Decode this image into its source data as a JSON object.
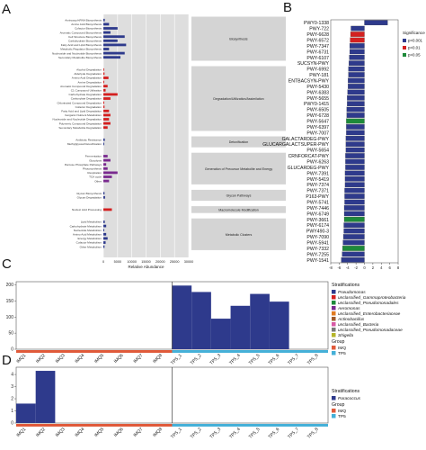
{
  "panel_labels": {
    "a": "A",
    "b": "B",
    "c": "C",
    "d": "D"
  },
  "chart_data": [
    {
      "id": "A",
      "type": "bar",
      "xlabel": "Relative Abundance",
      "xticks": [
        "0",
        "5000",
        "10000",
        "15000",
        "20000",
        "25000",
        "30000"
      ],
      "xlim": [
        0,
        30000
      ],
      "categories": [
        "Aminoacyl-tRNA Biosynthesis",
        "Amino Acid Biosynthesis",
        "Cofactor Biosynthesis",
        "Aromatic Compound Biosynthesis",
        "Cell Structure Biosynthesis",
        "Carbohydrate Biosynthesis",
        "Fatty Acid and Lipid Biosynthesis",
        "Metabolic Regulator Biosynthesis",
        "Nucleoside and Nucleotide Biosynthesis",
        "Secondary Metabolite Biosynthesis",
        "Alcohol Degradation",
        "Aldehyde Degradation",
        "Amino Acid Degradation",
        "Amine Degradation",
        "Aromatic Compound Degradation",
        "C1 Compound Utilization",
        "Carbohydrate Degradation",
        "Carboxylate Degradation",
        "Chlorinated Compound Degradation",
        "Cofactor Degradation",
        "Fatty Acid and Lipid Degradation",
        "Inorganic Nutrient Metabolism",
        "Nucleoside and Nucleotide Degradation",
        "Polymeric Compound Degradation",
        "Secondary Metabolite Degradation",
        "Antibiotic Resistance",
        "Methylglyoxal Detoxification",
        "Fermentation",
        "Glycolysis",
        "Pentose Phosphate Pathways",
        "Photosynthesis",
        "Respiration",
        "TCA cycle",
        "Other",
        "Glycan Biosynthesis",
        "Glycan Degradation",
        "Nucleic Acid Processing",
        "Lipid Metabolism",
        "Carbohydrate Metabolism",
        "Nucleotide Metabolism",
        "Amino Acid Metabolism",
        "Energy Metabolism",
        "Cofactor Metabolism",
        "Other Metabolism"
      ],
      "values": [
        500,
        2000,
        5000,
        2500,
        7500,
        5000,
        8000,
        2000,
        7500,
        6000,
        200,
        400,
        1800,
        300,
        1500,
        800,
        5000,
        2500,
        300,
        400,
        2000,
        2500,
        2000,
        2500,
        1500,
        500,
        300,
        1500,
        2500,
        1000,
        1500,
        5000,
        3000,
        2000,
        400,
        600,
        3000,
        500,
        1000,
        300,
        1000,
        1500,
        800,
        400
      ],
      "groups": [
        {
          "name": "Biosynthesis",
          "count": 10,
          "color": "#2e3a8c"
        },
        {
          "name": "Degradation/Utilization/Assimilation",
          "count": 15,
          "color": "#d42020"
        },
        {
          "name": "Detoxification",
          "count": 2,
          "color": "#2e3a8c"
        },
        {
          "name": "Generation of Precursor Metabolite and Energy",
          "count": 7,
          "color": "#7a2a8f"
        },
        {
          "name": "Glycan Pathways",
          "count": 2,
          "color": "#2e3a8c"
        },
        {
          "name": "Macromolecule Modification",
          "count": 1,
          "color": "#d42020"
        },
        {
          "name": "Metabolic Clusters",
          "count": 7,
          "color": "#2e3a8c"
        }
      ]
    },
    {
      "id": "B",
      "type": "bar",
      "orientation": "horizontal",
      "categories": [
        "PWY0-1338",
        "PWY-722",
        "PWY-6628",
        "PWY-6572",
        "PWY-7347",
        "PWY-6731",
        "PWY-6107",
        "SUCSYN-PWY",
        "PWY-6992",
        "PWY-181",
        "ENTBACSYN-PWY",
        "PWY-5430",
        "PWY-6383",
        "PWY-5655",
        "PWY0-1415",
        "PWY-6505",
        "PWY-6728",
        "PWY-5647",
        "PWY-6397",
        "PWY-7007",
        "GALACTARDEG-PWY",
        "GLUCARGALACTSUPER-PWY",
        "PWY-5654",
        "CRNFORCAT-PWY",
        "PWY-6263",
        "GLUCARDEG-PWY",
        "PWY-7391",
        "PWY-5419",
        "PWY-7374",
        "PWY-7371",
        "P163-PWY",
        "PWY-5741",
        "PWY-7446",
        "PWY-6749",
        "PWY-3661",
        "PWY-6174",
        "PWY490-3",
        "PWY-7090",
        "PWY-5941",
        "PWY-7332",
        "PWY-7255",
        "PWY-1541"
      ],
      "values": [
        5.5,
        -3.2,
        -3.3,
        -3.4,
        -3.5,
        -3.5,
        -3.6,
        -3.7,
        -3.8,
        -3.8,
        -3.9,
        -3.9,
        -4.0,
        -4.1,
        -4.1,
        -4.2,
        -4.2,
        -4.3,
        -4.3,
        -4.3,
        -4.4,
        -4.4,
        -4.4,
        -4.5,
        -4.5,
        -4.5,
        -4.6,
        -4.6,
        -4.6,
        -4.7,
        -4.7,
        -4.7,
        -4.8,
        -4.8,
        -4.8,
        -4.9,
        -4.9,
        -5.0,
        -5.1,
        -5.2,
        -5.3,
        -5.5
      ],
      "significance": [
        "p<0.001",
        "p<0.001",
        "p<0.01",
        "p<0.01",
        "p<0.001",
        "p<0.001",
        "p<0.001",
        "p<0.001",
        "p<0.001",
        "p<0.001",
        "p<0.001",
        "p<0.001",
        "p<0.001",
        "p<0.001",
        "p<0.001",
        "p<0.001",
        "p<0.001",
        "p<0.05",
        "p<0.001",
        "p<0.001",
        "p<0.001",
        "p<0.001",
        "p<0.001",
        "p<0.001",
        "p<0.001",
        "p<0.001",
        "p<0.001",
        "p<0.001",
        "p<0.001",
        "p<0.001",
        "p<0.001",
        "p<0.001",
        "p<0.001",
        "p<0.001",
        "p<0.05",
        "p<0.001",
        "p<0.001",
        "p<0.001",
        "p<0.001",
        "p<0.05",
        "p<0.001",
        "p<0.001"
      ],
      "xticks": [
        "-8",
        "-6",
        "-4",
        "-2",
        "0",
        "2",
        "4",
        "6",
        "8"
      ],
      "xlim": [
        -8,
        8
      ],
      "legend": {
        "title": "Significance",
        "items": [
          {
            "label": "p<0.001",
            "color": "#2e3a8c"
          },
          {
            "label": "p<0.01",
            "color": "#d42020"
          },
          {
            "label": "p<0.05",
            "color": "#1e8a3a"
          }
        ]
      }
    },
    {
      "id": "C",
      "type": "bar",
      "stacked": true,
      "categories": [
        "IMQ1",
        "IMQ2",
        "IMQ3",
        "IMQ4",
        "IMQ5",
        "IMQ6",
        "IMQ7",
        "IMQ8",
        "TP5_1",
        "TP5_2",
        "TP5_3",
        "TP5_4",
        "TP5_5",
        "TP5_6",
        "TP5_7",
        "TP5_8"
      ],
      "yticks": [
        "0",
        "50",
        "100",
        "150",
        "200"
      ],
      "ylim": [
        0,
        210
      ],
      "series": [
        {
          "name": "Pseudomonas",
          "color": "#2e3a8c",
          "values": [
            0,
            0,
            0,
            0,
            0,
            0,
            0,
            0,
            198,
            178,
            95,
            135,
            172,
            148,
            0,
            0
          ]
        },
        {
          "name": "unclassified_Gammaproteobacteria",
          "color": "#d42020",
          "values": [
            0,
            0,
            0,
            0,
            0,
            0,
            0,
            0,
            0,
            0,
            0,
            0,
            0,
            0,
            0,
            0
          ]
        },
        {
          "name": "unclassified_Pseudomonadales",
          "color": "#1e8a3a",
          "values": [
            0,
            0,
            0,
            0,
            0,
            0,
            0,
            0,
            0,
            0,
            0,
            0,
            0,
            0,
            0,
            0
          ]
        },
        {
          "name": "Aeromonas",
          "color": "#7a2a8f",
          "values": [
            0,
            0,
            0,
            0,
            0,
            0,
            0,
            0,
            0,
            0,
            0,
            0,
            0,
            0,
            0,
            0
          ]
        },
        {
          "name": "unclassified_Enterobacteriaceae",
          "color": "#e07a20",
          "values": [
            0,
            0,
            0,
            0,
            0,
            0,
            0,
            0,
            0,
            0,
            0,
            0,
            0,
            0,
            0,
            0
          ]
        },
        {
          "name": "Actinobacillus",
          "color": "#a05a2a",
          "values": [
            0,
            0,
            0,
            0,
            0,
            0,
            0,
            0,
            0,
            0,
            0,
            0,
            0,
            0,
            0,
            0
          ]
        },
        {
          "name": "unclassified_Bacteria",
          "color": "#d85aa5",
          "values": [
            0,
            0,
            0,
            0,
            0,
            0,
            0,
            0,
            0,
            0,
            0,
            0,
            0,
            0,
            0,
            0
          ]
        },
        {
          "name": "unclassified_Pseudomonadaceae",
          "color": "#7a7a7a",
          "values": [
            0,
            0,
            0,
            0,
            0,
            0,
            0,
            0,
            0,
            0,
            0,
            0,
            0,
            0,
            0,
            0
          ]
        },
        {
          "name": "Shigella",
          "color": "#b5b52a",
          "values": [
            0,
            0,
            0,
            0,
            0,
            0,
            0,
            0,
            0,
            0,
            0,
            0,
            0,
            0,
            0,
            0
          ]
        }
      ],
      "legend_title": "Stratifications",
      "group_legend": {
        "title": "Group",
        "items": [
          {
            "label": "IMQ",
            "color": "#e05a3a"
          },
          {
            "label": "TP5",
            "color": "#45b0d8"
          }
        ]
      }
    },
    {
      "id": "D",
      "type": "bar",
      "categories": [
        "IMQ1",
        "IMQ2",
        "IMQ3",
        "IMQ4",
        "IMQ5",
        "IMQ6",
        "IMQ7",
        "IMQ8",
        "TP5_1",
        "TP5_2",
        "TP5_3",
        "TP5_4",
        "TP5_5",
        "TP5_6",
        "TP5_7",
        "TP5_8"
      ],
      "yticks": [
        "0",
        "1",
        "2",
        "3",
        "4"
      ],
      "ylim": [
        0,
        4.6
      ],
      "series": [
        {
          "name": "Paracoccus",
          "color": "#2e3a8c",
          "values": [
            1.6,
            4.3,
            0,
            0,
            0,
            0,
            0,
            0,
            0,
            0,
            0,
            0,
            0,
            0,
            0,
            0
          ]
        }
      ],
      "legend_title": "Stratifications",
      "group_legend": {
        "title": "Group",
        "items": [
          {
            "label": "IMQ",
            "color": "#e05a3a"
          },
          {
            "label": "TP5",
            "color": "#45b0d8"
          }
        ]
      }
    }
  ]
}
